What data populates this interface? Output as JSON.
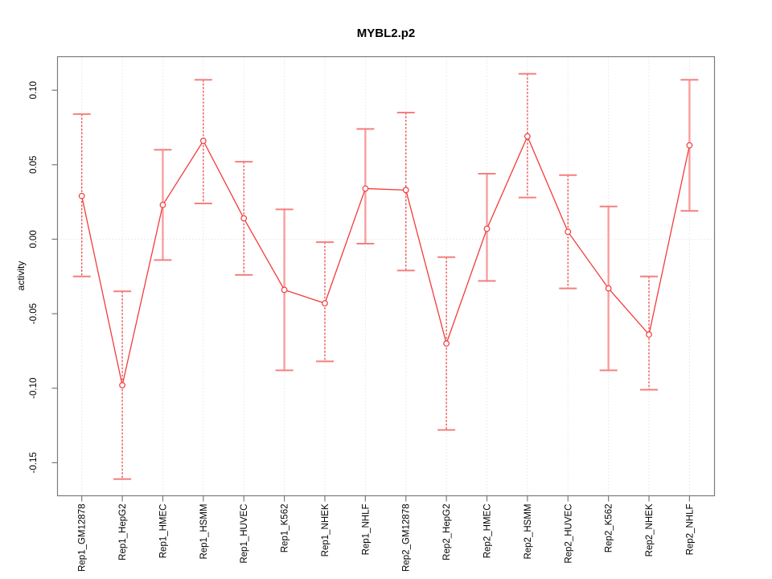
{
  "chart_data": {
    "type": "line",
    "title": "MYBL2.p2",
    "ylabel": "activity",
    "xlabel": "",
    "categories": [
      "Rep1_GM12878",
      "Rep1_HepG2",
      "Rep1_HMEC",
      "Rep1_HSMM",
      "Rep1_HUVEC",
      "Rep1_K562",
      "Rep1_NHEK",
      "Rep1_NHLF",
      "Rep2_GM12878",
      "Rep2_HepG2",
      "Rep2_HMEC",
      "Rep2_HSMM",
      "Rep2_HUVEC",
      "Rep2_K562",
      "Rep2_NHEK",
      "Rep2_NHLF"
    ],
    "values": [
      0.029,
      -0.098,
      0.023,
      0.066,
      0.014,
      -0.034,
      -0.043,
      0.034,
      0.033,
      -0.07,
      0.007,
      0.069,
      0.005,
      -0.033,
      -0.064,
      0.063
    ],
    "error_high": [
      0.084,
      -0.035,
      0.06,
      0.107,
      0.052,
      0.02,
      -0.002,
      0.074,
      0.085,
      -0.012,
      0.044,
      0.111,
      0.043,
      0.022,
      -0.025,
      0.107
    ],
    "error_low": [
      -0.025,
      -0.161,
      -0.014,
      0.024,
      -0.024,
      -0.088,
      -0.082,
      -0.003,
      -0.021,
      -0.128,
      -0.028,
      0.028,
      -0.033,
      -0.088,
      -0.101,
      0.019
    ],
    "error_bar_styles": [
      "dashed",
      "dashed",
      "solid",
      "dashed",
      "dashed",
      "solid",
      "dashed",
      "solid",
      "dashed",
      "dashed",
      "solid",
      "dashed",
      "dashed",
      "solid",
      "dashed",
      "solid"
    ],
    "yticks": [
      0.1,
      0.05,
      0.0,
      -0.05,
      -0.1,
      -0.15
    ],
    "ytick_labels": [
      "0.10",
      "0.05",
      "0.00",
      "-0.05",
      "-0.10",
      "-0.15"
    ],
    "ylim": [
      -0.1722,
      0.1225
    ],
    "grid": {
      "vertical_at_each_category": true,
      "horizontal_at_zero_only": true,
      "style": "dotted"
    },
    "legend": "none",
    "marker": "open-circle-white-fill",
    "colors": {
      "series_line": "#f23b3b",
      "error_bar_solid": "#f89f9f",
      "error_bar_dashed": "#ef4747",
      "error_bar_cap": "#f57f7f",
      "gridline": "#d8d8d8",
      "axis_box": "#7a7a7a",
      "text": "#000000"
    }
  }
}
